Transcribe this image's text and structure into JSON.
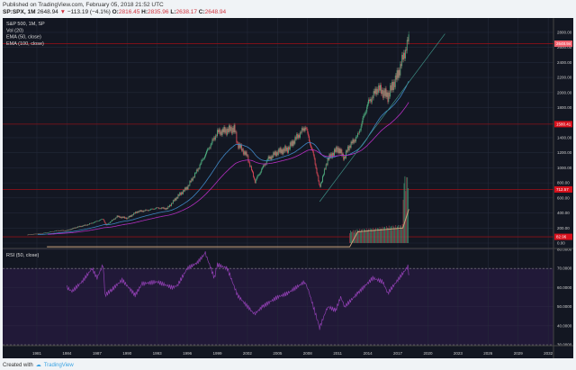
{
  "header": {
    "published": "Published on TradingView.com, February 05, 2018 21:52 UTC",
    "symbol": "SP:SPX, 1M",
    "last": "2648.94",
    "change": "−113.19 (−4.1%)",
    "o_label": "O:",
    "open": "2816.45",
    "h_label": "H:",
    "high": "2835.96",
    "l_label": "L:",
    "low": "2638.17",
    "c_label": "C:",
    "close": "2648.94"
  },
  "legend": [
    "S&P 500, 1M, SP",
    "Vol (20)",
    "EMA (50, close)",
    "EMA (100, close)"
  ],
  "rsi_label": "RSI (50, close)",
  "price_axis": [
    "2800.00",
    "2600.00",
    "2400.00",
    "2200.00",
    "2000.00",
    "1800.00",
    "1400.00",
    "1200.00",
    "1000.00",
    "800.00",
    "600.00",
    "400.00",
    "200.00",
    "0.00"
  ],
  "price_tags": [
    {
      "value": "2648.94",
      "color": "#f0606c"
    },
    {
      "value": "1580.41",
      "color": "#d8101c"
    },
    {
      "value": "712.57",
      "color": "#d8101c"
    },
    {
      "value": "82.96",
      "color": "#d8101c"
    }
  ],
  "rsi_axis": [
    "80.0000",
    "70.0000",
    "60.0000",
    "50.0000",
    "40.0000",
    "30.0000"
  ],
  "time_axis": [
    "1981",
    "1984",
    "1987",
    "1990",
    "1993",
    "1996",
    "1999",
    "2002",
    "2005",
    "2008",
    "2011",
    "2014",
    "2017",
    "2020",
    "2023",
    "2026",
    "2029",
    "2032"
  ],
  "footer": {
    "created": "Created with",
    "brand": "TradingView"
  },
  "colors": {
    "background": "#131722",
    "up": "#53b987",
    "down": "#eb4d5c",
    "ema50": "#3f86c4",
    "ema100": "#b42ec0",
    "rsi": "#8e3fb0",
    "rsi_band": "#211938",
    "levels": "#8b1018"
  },
  "chart_data": {
    "type": "candlestick",
    "price_levels": [
      2648.94,
      1580.41,
      712.57,
      82.96
    ],
    "price_close": [
      [
        1980,
        108
      ],
      [
        1981,
        122
      ],
      [
        1982,
        140
      ],
      [
        1983,
        165
      ],
      [
        1984,
        167
      ],
      [
        1985,
        211
      ],
      [
        1986,
        242
      ],
      [
        1987.6,
        320
      ],
      [
        1987.9,
        235
      ],
      [
        1988,
        247
      ],
      [
        1989,
        353
      ],
      [
        1990,
        330
      ],
      [
        1991,
        417
      ],
      [
        1992,
        435
      ],
      [
        1993,
        466
      ],
      [
        1994,
        459
      ],
      [
        1995,
        615
      ],
      [
        1996,
        740
      ],
      [
        1997,
        970
      ],
      [
        1998,
        1229
      ],
      [
        1999,
        1469
      ],
      [
        2000.7,
        1520
      ],
      [
        2001,
        1320
      ],
      [
        2002,
        1148
      ],
      [
        2002.75,
        815
      ],
      [
        2003,
        880
      ],
      [
        2004,
        1111
      ],
      [
        2005,
        1211
      ],
      [
        2006,
        1248
      ],
      [
        2007,
        1418
      ],
      [
        2007.8,
        1549
      ],
      [
        2008.7,
        1100
      ],
      [
        2009.2,
        735
      ],
      [
        2010,
        1115
      ],
      [
        2011,
        1257
      ],
      [
        2011.7,
        1130
      ],
      [
        2012,
        1257
      ],
      [
        2013,
        1426
      ],
      [
        2014,
        1848
      ],
      [
        2015,
        2058
      ],
      [
        2016,
        1950
      ],
      [
        2016.5,
        2100
      ],
      [
        2017,
        2238
      ],
      [
        2018,
        2673
      ],
      [
        2018.05,
        2872
      ],
      [
        2018.1,
        2648.94
      ]
    ],
    "volume": [
      [
        2012.2,
        150
      ],
      [
        2013,
        170
      ],
      [
        2014,
        180
      ],
      [
        2015,
        190
      ],
      [
        2016,
        210
      ],
      [
        2017,
        220
      ],
      [
        2017.5,
        230
      ],
      [
        2017.55,
        800
      ],
      [
        2018.1,
        850
      ]
    ],
    "rsi": [
      [
        1984,
        60
      ],
      [
        1984.5,
        58
      ],
      [
        1985.5,
        63
      ],
      [
        1986.5,
        70
      ],
      [
        1987,
        65
      ],
      [
        1987.6,
        72
      ],
      [
        1987.8,
        56
      ],
      [
        1988.5,
        59
      ],
      [
        1989.5,
        64
      ],
      [
        1990.8,
        56
      ],
      [
        1991.5,
        62
      ],
      [
        1993,
        63
      ],
      [
        1994.5,
        60
      ],
      [
        1995,
        61
      ],
      [
        1996,
        70
      ],
      [
        1997,
        73
      ],
      [
        1997.8,
        78
      ],
      [
        1998.7,
        65
      ],
      [
        1999,
        72
      ],
      [
        2000,
        70
      ],
      [
        2001,
        56
      ],
      [
        2002.7,
        46
      ],
      [
        2003.5,
        50
      ],
      [
        2005,
        55
      ],
      [
        2006,
        57
      ],
      [
        2007.7,
        63
      ],
      [
        2008,
        60
      ],
      [
        2009.2,
        39
      ],
      [
        2010,
        50
      ],
      [
        2010.8,
        48
      ],
      [
        2011.3,
        55
      ],
      [
        2011.7,
        50
      ],
      [
        2013,
        57
      ],
      [
        2014.5,
        65
      ],
      [
        2015.5,
        63
      ],
      [
        2016,
        57
      ],
      [
        2017,
        64
      ],
      [
        2018,
        71
      ],
      [
        2018.1,
        67
      ]
    ],
    "price_range": [
      0,
      2900
    ],
    "rsi_range": [
      30,
      80
    ],
    "rsi_levels": [
      70,
      30
    ],
    "x_range": [
      1978,
      2034
    ],
    "grid": true,
    "legend": "top-left"
  }
}
